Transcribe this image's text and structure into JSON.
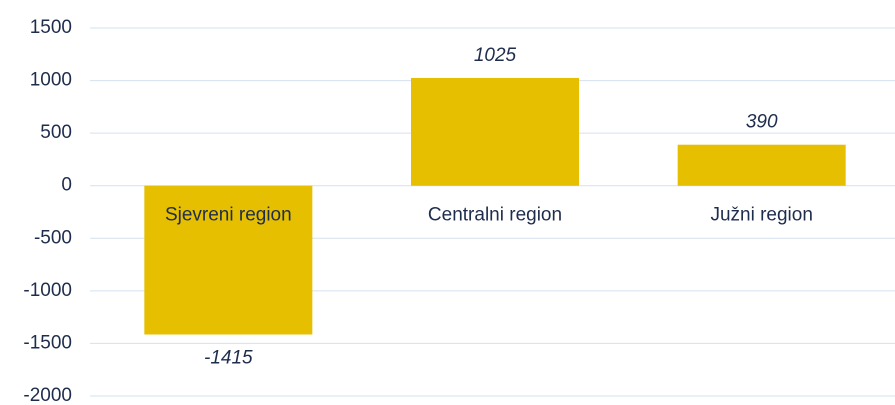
{
  "chart_data": {
    "type": "bar",
    "categories": [
      "Sjevreni region",
      "Centralni region",
      "Južni region"
    ],
    "values": [
      -1415,
      1025,
      390
    ],
    "color": "#e5bf00",
    "ylim": [
      -2000,
      1500
    ],
    "yticks": [
      1500,
      1000,
      500,
      0,
      -500,
      -1000,
      -1500,
      -2000
    ],
    "grid": true
  }
}
